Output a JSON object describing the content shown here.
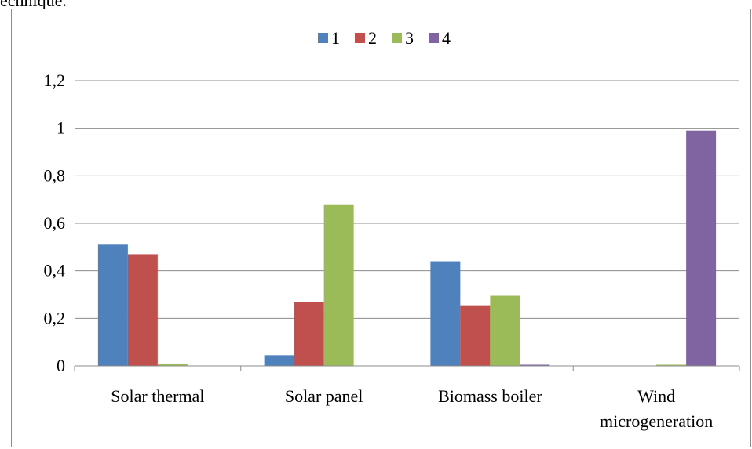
{
  "page_header_fragment": "echnique.",
  "chart_data": {
    "type": "bar",
    "categories": [
      [
        "Solar thermal"
      ],
      [
        "Solar panel"
      ],
      [
        "Biomass boiler"
      ],
      [
        "Wind",
        "microgeneration"
      ]
    ],
    "series": [
      {
        "name": "1",
        "color": "#4f81bd",
        "values": [
          0.51,
          0.045,
          0.44,
          0.0
        ]
      },
      {
        "name": "2",
        "color": "#c0504d",
        "values": [
          0.47,
          0.27,
          0.255,
          0.0
        ]
      },
      {
        "name": "3",
        "color": "#9bbb59",
        "values": [
          0.01,
          0.68,
          0.295,
          0.005
        ]
      },
      {
        "name": "4",
        "color": "#8064a2",
        "values": [
          0.0,
          0.0,
          0.005,
          0.99
        ]
      }
    ],
    "ylim": [
      0,
      1.2
    ],
    "yticks": [
      0,
      0.2,
      0.4,
      0.6,
      0.8,
      1,
      1.2
    ],
    "ytick_labels": [
      "0",
      "0,2",
      "0,4",
      "0,6",
      "0,8",
      "1",
      "1,2"
    ],
    "grid": true,
    "legend_position": "top-center",
    "title": "",
    "xlabel": "",
    "ylabel": ""
  }
}
